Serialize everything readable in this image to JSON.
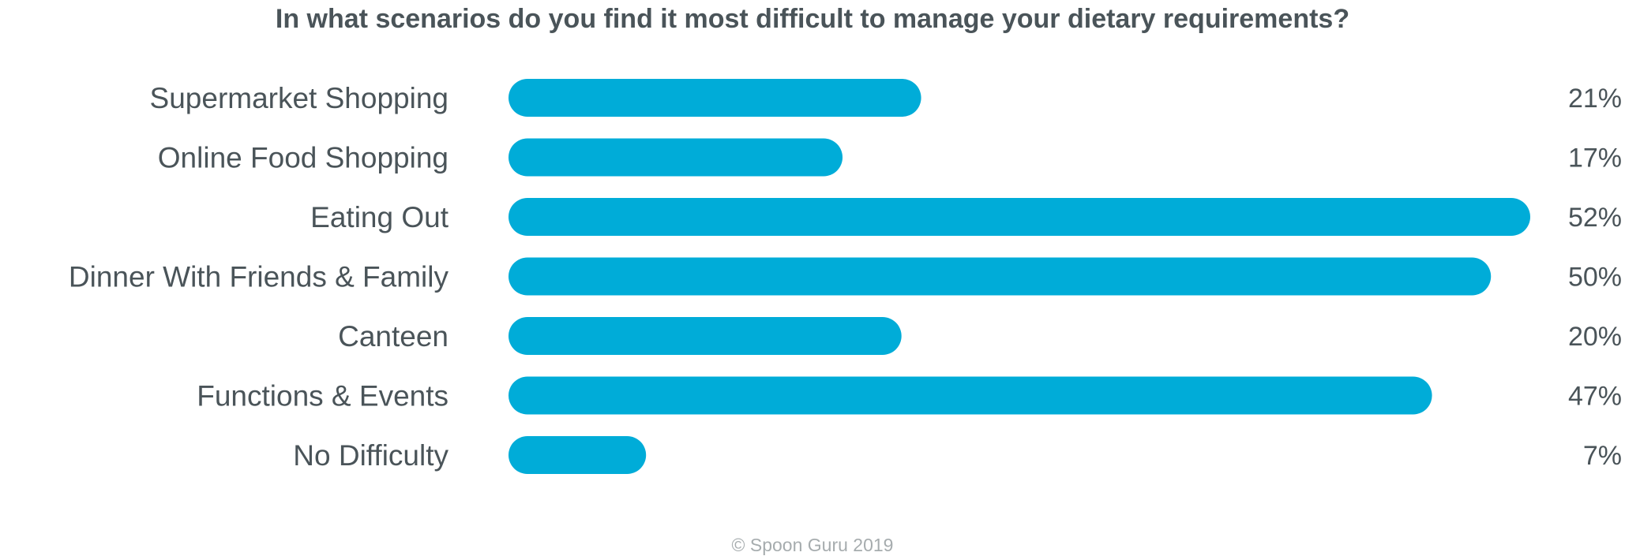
{
  "chart_data": {
    "type": "bar",
    "orientation": "horizontal",
    "title": "In what scenarios do you find it most difficult to manage your dietary requirements?",
    "categories": [
      "Supermarket Shopping",
      "Online Food Shopping",
      "Eating Out",
      "Dinner With Friends & Family",
      "Canteen",
      "Functions & Events",
      "No Difficulty"
    ],
    "values": [
      21,
      17,
      52,
      50,
      20,
      47,
      7
    ],
    "value_labels": [
      "21%",
      "17%",
      "52%",
      "50%",
      "20%",
      "47%",
      "7%"
    ],
    "unit": "%",
    "bar_color": "#00acd8",
    "text_color": "#4a5459",
    "xlim": [
      0,
      52
    ],
    "grid": false,
    "legend": "none"
  },
  "footer": {
    "credit": "© Spoon Guru 2019"
  }
}
